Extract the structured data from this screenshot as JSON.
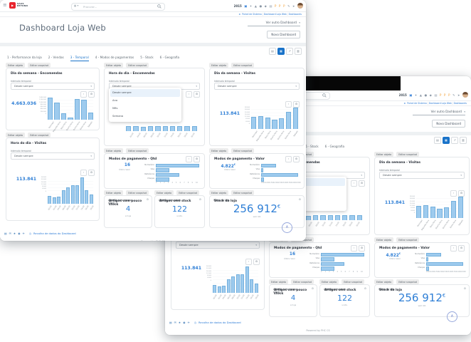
{
  "app": {
    "navbar": {
      "logo_line1": "SAAS",
      "logo_line2": "BEYOND",
      "search_placeholder": "Procurar...",
      "year": "2015",
      "icons": [
        {
          "name": "apps-blue",
          "glyph": "▣",
          "color": "#2e7cd6"
        },
        {
          "name": "favorites",
          "glyph": "✦",
          "color": "#8a97a5"
        },
        {
          "name": "alerts",
          "glyph": "▲",
          "color": "#8a97a5"
        },
        {
          "name": "monitor",
          "glyph": "●",
          "color": "#8a97a5"
        },
        {
          "name": "tasks",
          "glyph": "◆",
          "color": "#8a97a5"
        },
        {
          "name": "calendar",
          "glyph": "▤",
          "color": "#8a97a5"
        },
        {
          "name": "notifications-1",
          "glyph": "P",
          "color": "#f2a33c"
        },
        {
          "name": "notifications-2",
          "glyph": "P",
          "color": "#f2a33c"
        },
        {
          "name": "messages",
          "glyph": "P",
          "color": "#f2a33c"
        },
        {
          "name": "edit",
          "glyph": "✎",
          "color": "#8a97a5"
        },
        {
          "name": "pin",
          "glyph": "➤",
          "color": "#8a97a5"
        }
      ]
    },
    "breadcrumb": {
      "items": [
        "Painel de Sistema",
        "Dashboard Loja Web",
        "Dashboards"
      ]
    },
    "header": {
      "title": "Dashboard Loja Web",
      "switch_label": "Ver outro Dashboard",
      "new_button": "Novo Dashboard"
    },
    "toolbar": [
      "▤",
      "▦",
      "↗",
      "▥"
    ],
    "toolbar_active": 1,
    "tabs": [
      "1 - Performance da loja",
      "2 - Vendas",
      "3 - Temporal",
      "4 - Modos de pagamentos",
      "5 - Stock",
      "6 - Geografia"
    ],
    "active_tab": 2,
    "edit_object": "Editar objeto",
    "edit_snapshot": "Editar snapshot",
    "interval_label": "Intervalo temporal",
    "interval_value": "Desde sempre",
    "dropdown_options": [
      "Desde sempre",
      "Ano",
      "Mês",
      "Semana"
    ],
    "last_value_label": "Último Valor",
    "chart_tool_icons": [
      "›",
      "⚙"
    ],
    "footer": {
      "icons": [
        "▤",
        "✉",
        "★",
        "◉",
        "✈"
      ],
      "link": "Recolha de dados do Dashboard",
      "powered": "Powered by PHC CS"
    }
  },
  "chart_data": [
    {
      "id": "dia-semana-encomendas",
      "type": "bar",
      "title": "Dia da semana - Encomendas",
      "total": "4.663.036",
      "categories": [
        "Domingo",
        "Segunda-feira",
        "Terça-feira",
        "Quarta-feira",
        "Quinta-feira",
        "Sexta-feira",
        "Sábado"
      ],
      "values": [
        100,
        78,
        26,
        7,
        93,
        89,
        30
      ],
      "unit": "relative-%-of-max",
      "yticks": [
        "1.400.000",
        "1.200.000",
        "1.000.000",
        "800.000",
        "600.000",
        "400.000",
        "200.000",
        "0"
      ]
    },
    {
      "id": "hora-dia-encomendas",
      "type": "bar",
      "title": "Hora do dia - Encomendas",
      "dropdown_open": true,
      "categories": [
        "02:00",
        "04:00",
        "06:00",
        "08:00",
        "10:00",
        "12:00",
        "14:00",
        "16:00",
        "18:00",
        "20:00"
      ],
      "values": [
        95,
        100,
        92,
        97,
        100,
        94,
        98,
        96,
        100,
        93
      ],
      "unit": "relative-%-of-max",
      "yticks": []
    },
    {
      "id": "dia-semana-visitas",
      "type": "bar",
      "title": "Dia da semana - Visitas",
      "total": "113.841",
      "categories": [
        "Domingo",
        "Segunda-feira",
        "Terça-feira",
        "Quarta-feira",
        "Quinta-feira",
        "Sexta-feira",
        "Sábado"
      ],
      "values": [
        55,
        59,
        52,
        41,
        48,
        78,
        100
      ],
      "unit": "relative-%-of-max",
      "yticks": [
        "28.000",
        "24.000",
        "20.000",
        "16.000",
        "12.000",
        "8.000",
        "4.000",
        "0"
      ]
    },
    {
      "id": "hora-dia-visitas",
      "type": "bar",
      "title": "Hora do dia - Visitas",
      "total": "113.841",
      "categories": [
        "00:00",
        "02:00",
        "04:00",
        "06:00",
        "08:00",
        "10:00",
        "12:00",
        "14:00",
        "16:00",
        "18:00"
      ],
      "values": [
        28,
        21,
        25,
        50,
        62,
        70,
        70,
        100,
        50,
        33
      ],
      "unit": "relative-%-of-max",
      "yticks": [
        "24.000",
        "20.000",
        "16.000",
        "12.000",
        "8.000",
        "4.000",
        "0"
      ]
    },
    {
      "id": "modos-pagamento-qtd",
      "type": "hbar",
      "title": "Modos de pagamento - Qtd",
      "last_value": "16",
      "categories": [
        "Numerário",
        "Visa",
        "Referência",
        "Cheque"
      ],
      "values": [
        10,
        2.8,
        5.2,
        2.8
      ],
      "xlim": [
        0,
        10
      ],
      "xticks": [
        "0",
        "1",
        "2",
        "3",
        "4",
        "5",
        "6",
        "7",
        "8",
        "9",
        "10"
      ]
    },
    {
      "id": "modos-pagamento-valor",
      "type": "hbar",
      "title": "Modos de pagamento - Valor",
      "last_value": "4.822",
      "currency": "€",
      "categories": [
        "Numerário",
        "Visa",
        "Referência",
        "Cheque"
      ],
      "values": [
        1700,
        100,
        4400,
        150
      ],
      "xlim": [
        0,
        4500
      ],
      "xticks": [
        "0",
        "500",
        "1.000",
        "1.500",
        "2.000",
        "2.500",
        "3.000",
        "3.500",
        "4.000",
        "4.500"
      ]
    },
    {
      "id": "artigos-pouco-stock",
      "type": "kpi",
      "title": "Artigos com pouco stock",
      "value": "4",
      "sub": "a hoje"
    },
    {
      "id": "artigos-sem-stock",
      "type": "kpi",
      "title": "Artigos sem stock",
      "value": "122",
      "sub": "unids."
    },
    {
      "id": "stock-da-loja",
      "type": "kpi",
      "title": "Stock da loja",
      "value": "256 912",
      "currency": "€",
      "sub": "sem IVA"
    }
  ]
}
